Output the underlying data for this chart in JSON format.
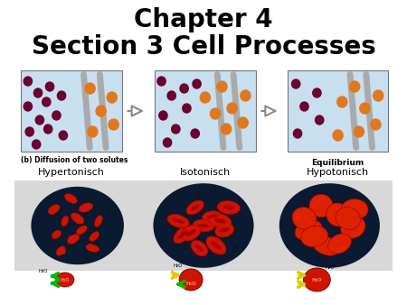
{
  "title_line1": "Chapter 4",
  "title_line2": "Section 3 Cell Processes",
  "title_fontsize": 20,
  "background_color": "#ffffff",
  "top_image_bg": "#c8dff0",
  "label_diffusion": "(b) Diffusion of two solutes",
  "label_equilibrium": "Equilibrium",
  "label_hyper": "Hypertonisch",
  "label_iso": "Isotonisch",
  "label_hypo": "Hypotonisch",
  "bottom_bg": "#d8d8d8",
  "dot_color_purple": "#6b0030",
  "dot_color_orange": "#e07820",
  "membrane_color": "#aaaaaa",
  "dark_circle_color": "#0a1a30",
  "blood_red": "#cc1500",
  "blood_dark_red": "#aa0000"
}
